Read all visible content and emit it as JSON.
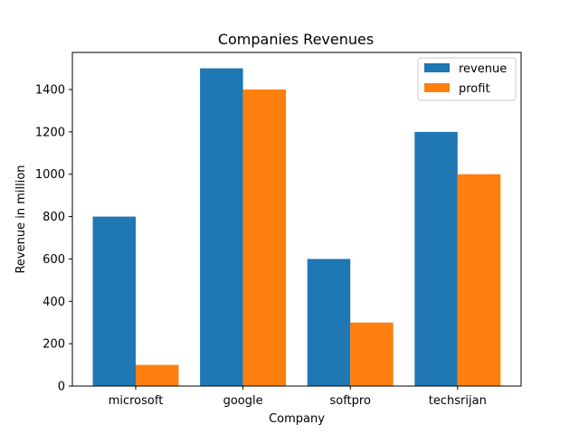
{
  "chart_data": {
    "type": "bar",
    "title": "Companies Revenues",
    "xlabel": "Company",
    "ylabel": "Revenue in million",
    "categories": [
      "microsoft",
      "google",
      "softpro",
      "techsrijan"
    ],
    "series": [
      {
        "name": "revenue",
        "values": [
          800,
          1500,
          600,
          1200
        ],
        "color": "#1f77b4"
      },
      {
        "name": "profit",
        "values": [
          100,
          1400,
          300,
          1000
        ],
        "color": "#ff7f0e"
      }
    ],
    "ylim": [
      0,
      1575
    ],
    "yticks": [
      "0",
      "200",
      "400",
      "600",
      "800",
      "1000",
      "1200",
      "1400"
    ],
    "grid": false,
    "legend_position": "top-right"
  }
}
